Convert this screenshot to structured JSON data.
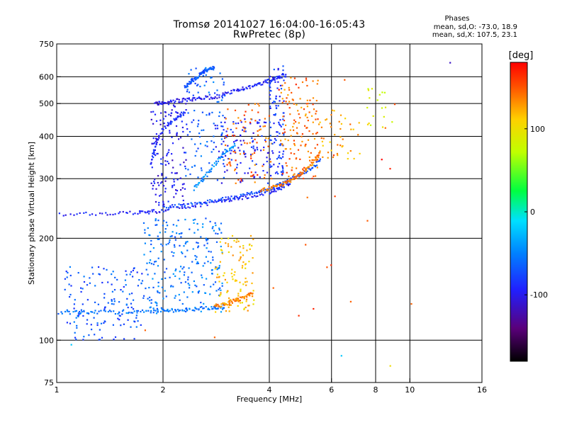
{
  "chart_data": {
    "type": "scatter",
    "title": "Tromsø 20141027 16:04:00-16:05:43",
    "subtitle": "RwPretec (8p)",
    "xlabel": "Frequency [MHz]",
    "ylabel": "Stationary phase Virtual Height [km]",
    "xscale": "log",
    "yscale": "log",
    "xlim": [
      1,
      16
    ],
    "ylim": [
      75,
      750
    ],
    "x_ticks": [
      1,
      2,
      4,
      6,
      8,
      10,
      16
    ],
    "y_ticks": [
      75,
      100,
      200,
      300,
      400,
      500,
      600,
      750
    ],
    "grid": true,
    "colorbar": {
      "label": "[deg]",
      "range": [
        -180,
        180
      ],
      "ticks": [
        100,
        0,
        -100
      ]
    },
    "phase_info": {
      "heading": "Phases",
      "o_line": "mean, sd,O: -73.0, 18.9",
      "x_line": "mean, sd,X: 107.5, 23.1"
    },
    "traces": [
      {
        "x": [
          1.0,
          1.35,
          1.7,
          1.9,
          2.2,
          2.6,
          3.0,
          3.5,
          4.0,
          4.3,
          4.6
        ],
        "y": [
          235,
          236,
          238,
          240,
          246,
          252,
          258,
          266,
          274,
          282,
          292
        ],
        "phase": -95
      },
      {
        "x": [
          2.0,
          2.4,
          2.8,
          3.2,
          3.6,
          4.0,
          4.4,
          4.8,
          5.2,
          5.6
        ],
        "y": [
          247,
          252,
          258,
          264,
          272,
          280,
          292,
          305,
          320,
          340
        ],
        "phase": -75
      },
      {
        "x": [
          3.8,
          4.1,
          4.4,
          4.7,
          5.0,
          5.3,
          5.6
        ],
        "y": [
          278,
          283,
          290,
          300,
          315,
          335,
          360
        ],
        "phase": 135
      },
      {
        "x": [
          1.0,
          1.2,
          1.45,
          1.75,
          2.0,
          2.2,
          2.5,
          2.8,
          3.0
        ],
        "y": [
          120,
          121,
          121,
          122,
          122,
          123,
          124,
          125,
          126
        ],
        "phase": -55
      },
      {
        "x": [
          2.8,
          3.0,
          3.2,
          3.4,
          3.6
        ],
        "y": [
          126,
          128,
          131,
          134,
          138
        ],
        "phase": 135
      },
      {
        "x": [
          1.9,
          2.0,
          2.2,
          2.4,
          2.6,
          2.9
        ],
        "y": [
          500,
          505,
          510,
          515,
          520,
          525
        ],
        "phase": -100
      },
      {
        "x": [
          2.9,
          3.2,
          3.5,
          3.8,
          4.1,
          4.5
        ],
        "y": [
          530,
          545,
          560,
          575,
          590,
          610
        ],
        "phase": -95
      },
      {
        "x": [
          2.3,
          2.4,
          2.5,
          2.6,
          2.7,
          2.8
        ],
        "y": [
          560,
          580,
          600,
          620,
          630,
          640
        ],
        "phase": -70
      },
      {
        "x": [
          2.45,
          2.6,
          2.8,
          3.0,
          3.2
        ],
        "y": [
          280,
          300,
          330,
          360,
          380
        ],
        "phase": -45
      },
      {
        "x": [
          1.85,
          1.9,
          2.0,
          2.15,
          2.3
        ],
        "y": [
          330,
          380,
          420,
          450,
          470
        ],
        "phase": -90
      }
    ],
    "clusters": [
      {
        "x": [
          1.05,
          1.75
        ],
        "y": [
          100,
          165
        ],
        "count": 150,
        "phase": -70
      },
      {
        "x": [
          1.75,
          2.95
        ],
        "y": [
          120,
          230
        ],
        "count": 240,
        "phase": -55
      },
      {
        "x": [
          2.8,
          3.65
        ],
        "y": [
          120,
          205
        ],
        "count": 110,
        "phase": 115
      },
      {
        "x": [
          1.85,
          2.35
        ],
        "y": [
          250,
          500
        ],
        "count": 140,
        "phase": -100
      },
      {
        "x": [
          2.3,
          3.0
        ],
        "y": [
          300,
          640
        ],
        "count": 100,
        "phase": -65
      },
      {
        "x": [
          2.8,
          4.0
        ],
        "y": [
          290,
          450
        ],
        "count": 110,
        "phase": -95
      },
      {
        "x": [
          3.0,
          4.1
        ],
        "y": [
          290,
          500
        ],
        "count": 80,
        "phase": 145
      },
      {
        "x": [
          4.0,
          4.4
        ],
        "y": [
          300,
          650
        ],
        "count": 110,
        "phase": -85
      },
      {
        "x": [
          4.3,
          5.5
        ],
        "y": [
          300,
          600
        ],
        "count": 140,
        "phase": 140
      },
      {
        "x": [
          5.5,
          7.3
        ],
        "y": [
          340,
          480
        ],
        "count": 45,
        "phase": 125
      },
      {
        "x": [
          7.5,
          9.0
        ],
        "y": [
          420,
          560
        ],
        "count": 18,
        "phase": 90
      },
      {
        "x": [
          4.0,
          9.5
        ],
        "y": [
          100,
          640
        ],
        "count": 18,
        "phase": 160
      }
    ],
    "outliers": [
      {
        "x": 13.0,
        "y": 660,
        "phase": -115
      },
      {
        "x": 8.8,
        "y": 84,
        "phase": 100
      },
      {
        "x": 10.1,
        "y": 128,
        "phase": 145
      },
      {
        "x": 6.4,
        "y": 90,
        "phase": -20
      },
      {
        "x": 1.1,
        "y": 97,
        "phase": -20
      },
      {
        "x": 1.78,
        "y": 107,
        "phase": 145
      },
      {
        "x": 2.8,
        "y": 102,
        "phase": 145
      },
      {
        "x": 6.8,
        "y": 130,
        "phase": 145
      }
    ]
  }
}
